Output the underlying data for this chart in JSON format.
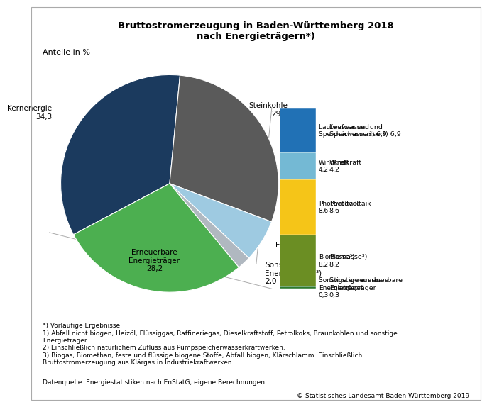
{
  "title": "Bruttostromerzeugung in Baden-Württemberg 2018\nnach Energieträgern*)",
  "subtitle_label": "Anteile in %",
  "slices": [
    {
      "label": "Kernenergie\n34,3",
      "value": 34.3,
      "color": "#1b3a5e"
    },
    {
      "label": "Steinkohle\n29,2",
      "value": 29.2,
      "color": "#5a5a5a"
    },
    {
      "label": "Erdgas\n6,3",
      "value": 6.3,
      "color": "#9ecae1"
    },
    {
      "label": "Sonstige\nEnergieträger³)\n2,0",
      "value": 2.0,
      "color": "#b0b8c0"
    },
    {
      "label": "Erneuerbare\nEnergieträger\n28,2",
      "value": 28.2,
      "color": "#4caf50"
    }
  ],
  "renewables": [
    {
      "label": "Laufwasser und\nSpeicherwasser²) 6,9",
      "value": 6.9,
      "color": "#2171b5"
    },
    {
      "label": "Windkraft\n4,2",
      "value": 4.2,
      "color": "#74b9d4"
    },
    {
      "label": "Photovoltaik\n8,6",
      "value": 8.6,
      "color": "#f5c518"
    },
    {
      "label": "Biomasse³)\n8,2",
      "value": 8.2,
      "color": "#6b8e23"
    },
    {
      "label": "Sonstige erneuerbare\nEnergieträger\n0,3",
      "value": 0.3,
      "color": "#2d7a2d"
    }
  ],
  "footnote1": "*) Vorläufige Ergebnisse.",
  "footnote2": "1) Abfall nicht biogen, Heizöl, Flüssiggas, Raffineriegas, Dieselkraftstoff, Petrolkoks, Braunkohlen und sonstige\nEnergieträger.",
  "footnote3": "2) Einschließlich natürlichem Zufluss aus Pumpspeicherwasserkraftwerken.",
  "footnote4": "3) Biogas, Biomethan, feste und flüssige biogene Stoffe, Abfall biogen, Klärschlamm. Einschließlich\nBruttostromerzeugung aus Klärgas in Industriekraftwerken.",
  "datasource": "Datenquelle: Energiestatistiken nach EnStatG, eigene Berechnungen.",
  "copyright": "© Statistisches Landesamt Baden-Württemberg 2019",
  "background_color": "#ffffff"
}
